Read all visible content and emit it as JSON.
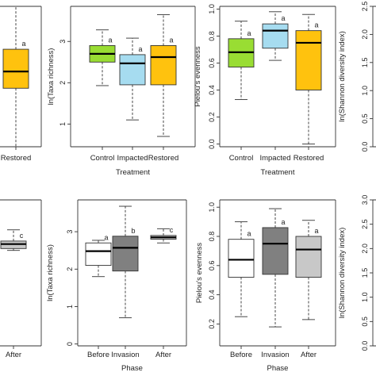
{
  "chart_data": [
    {
      "type": "boxplot",
      "panel": "top-col1 (cropped)",
      "title": "",
      "xlabel": "",
      "ylabel": "",
      "categories": [
        "Restored"
      ],
      "boxes": [
        {
          "category": "Restored",
          "whisker_low": 0.0,
          "q1": 1.5,
          "median": 1.93,
          "q3": 2.5,
          "whisker_high": 3.6,
          "color": "#FFC20E",
          "letter": "a"
        }
      ],
      "ylim": [
        0,
        3.6
      ],
      "yticks": []
    },
    {
      "type": "boxplot",
      "panel": "top-col2",
      "title": "",
      "xlabel": "Treatment",
      "ylabel": "ln(Taxa richness)",
      "categories": [
        "Control",
        "Impacted",
        "Restored"
      ],
      "boxes": [
        {
          "category": "Control",
          "whisker_low": 1.93,
          "q1": 2.5,
          "median": 2.7,
          "q3": 2.9,
          "whisker_high": 3.28,
          "color": "#99DD33",
          "letter": "a"
        },
        {
          "category": "Impacted",
          "whisker_low": 1.1,
          "q1": 1.95,
          "median": 2.47,
          "q3": 2.68,
          "whisker_high": 3.08,
          "color": "#A6DCF0",
          "letter": "a"
        },
        {
          "category": "Restored",
          "whisker_low": 0.7,
          "q1": 1.95,
          "median": 2.62,
          "q3": 2.9,
          "whisker_high": 3.65,
          "color": "#FFC20E",
          "letter": "a"
        }
      ],
      "ylim": [
        0.45,
        3.85
      ],
      "yticks": [
        "1",
        "2",
        "3"
      ]
    },
    {
      "type": "boxplot",
      "panel": "top-col3",
      "title": "",
      "xlabel": "Treatment",
      "ylabel": "Pielou's evenness",
      "categories": [
        "Control",
        "Impacted",
        "Restored"
      ],
      "boxes": [
        {
          "category": "Control",
          "whisker_low": 0.33,
          "q1": 0.57,
          "median": 0.68,
          "q3": 0.78,
          "whisker_high": 0.91,
          "color": "#99DD33",
          "letter": "a"
        },
        {
          "category": "Impacted",
          "whisker_low": 0.62,
          "q1": 0.71,
          "median": 0.84,
          "q3": 0.89,
          "whisker_high": 0.98,
          "color": "#A6DCF0",
          "letter": "a"
        },
        {
          "category": "Restored",
          "whisker_low": 0.0,
          "q1": 0.4,
          "median": 0.75,
          "q3": 0.84,
          "whisker_high": 0.96,
          "color": "#FFC20E",
          "letter": "a"
        }
      ],
      "ylim": [
        -0.02,
        1.02
      ],
      "yticks": [
        "0.0",
        "0.2",
        "0.4",
        "0.6",
        "0.8",
        "1.0"
      ]
    },
    {
      "type": "boxplot",
      "panel": "top-col4 (cropped)",
      "title": "",
      "xlabel": "",
      "ylabel": "ln(Shannon diversity index)",
      "categories": [],
      "boxes": [],
      "ylim": [
        0,
        2.5
      ],
      "yticks": [
        "0.0",
        "0.5",
        "1.0",
        "1.5",
        "2.0",
        "2.5"
      ]
    },
    {
      "type": "boxplot",
      "panel": "bottom-col1 (cropped)",
      "title": "",
      "xlabel": "",
      "ylabel": "",
      "categories": [
        "After"
      ],
      "boxes": [
        {
          "category": "After",
          "whisker_low": 2.55,
          "q1": 2.6,
          "median": 2.72,
          "q3": 2.8,
          "whisker_high": 3.1,
          "color": "#C8C8C8",
          "letter": "c"
        }
      ],
      "ylim": [
        0,
        3.9
      ],
      "yticks": []
    },
    {
      "type": "boxplot",
      "panel": "bottom-col2",
      "title": "",
      "xlabel": "Phase",
      "ylabel": "ln(Taxa richness)",
      "categories": [
        "Before",
        "Invasion",
        "After"
      ],
      "boxes": [
        {
          "category": "Before",
          "whisker_low": 1.8,
          "q1": 2.1,
          "median": 2.48,
          "q3": 2.7,
          "whisker_high": 2.77,
          "color": "#FFFFFF",
          "letter": "a"
        },
        {
          "category": "Invasion",
          "whisker_low": 0.7,
          "q1": 1.95,
          "median": 2.57,
          "q3": 2.88,
          "whisker_high": 3.68,
          "color": "#808080",
          "letter": "b"
        },
        {
          "category": "After",
          "whisker_low": 2.7,
          "q1": 2.8,
          "median": 2.85,
          "q3": 2.9,
          "whisker_high": 3.08,
          "color": "#C8C8C8",
          "letter": "c"
        }
      ],
      "ylim": [
        -0.05,
        3.85
      ],
      "yticks": [
        "0",
        "1",
        "2",
        "3"
      ]
    },
    {
      "type": "boxplot",
      "panel": "bottom-col3",
      "title": "",
      "xlabel": "Phase",
      "ylabel": "Pielou's evenness",
      "categories": [
        "Before",
        "Invasion",
        "After"
      ],
      "boxes": [
        {
          "category": "Before",
          "whisker_low": 0.25,
          "q1": 0.52,
          "median": 0.64,
          "q3": 0.78,
          "whisker_high": 0.9,
          "color": "#FFFFFF",
          "letter": "a"
        },
        {
          "category": "Invasion",
          "whisker_low": 0.18,
          "q1": 0.54,
          "median": 0.75,
          "q3": 0.86,
          "whisker_high": 0.99,
          "color": "#808080",
          "letter": "a"
        },
        {
          "category": "After",
          "whisker_low": 0.23,
          "q1": 0.52,
          "median": 0.71,
          "q3": 0.8,
          "whisker_high": 0.91,
          "color": "#C8C8C8",
          "letter": "a"
        }
      ],
      "ylim": [
        0.05,
        1.05
      ],
      "yticks": [
        "0.2",
        "0.4",
        "0.6",
        "0.8",
        "1.0"
      ]
    },
    {
      "type": "boxplot",
      "panel": "bottom-col4 (cropped)",
      "title": "",
      "xlabel": "",
      "ylabel": "ln(Shannon diversity index)",
      "categories": [],
      "boxes": [],
      "ylim": [
        0,
        3.0
      ],
      "yticks": [
        "0.0",
        "0.5",
        "1.0",
        "1.5",
        "2.0",
        "2.5",
        "3.0"
      ]
    }
  ]
}
